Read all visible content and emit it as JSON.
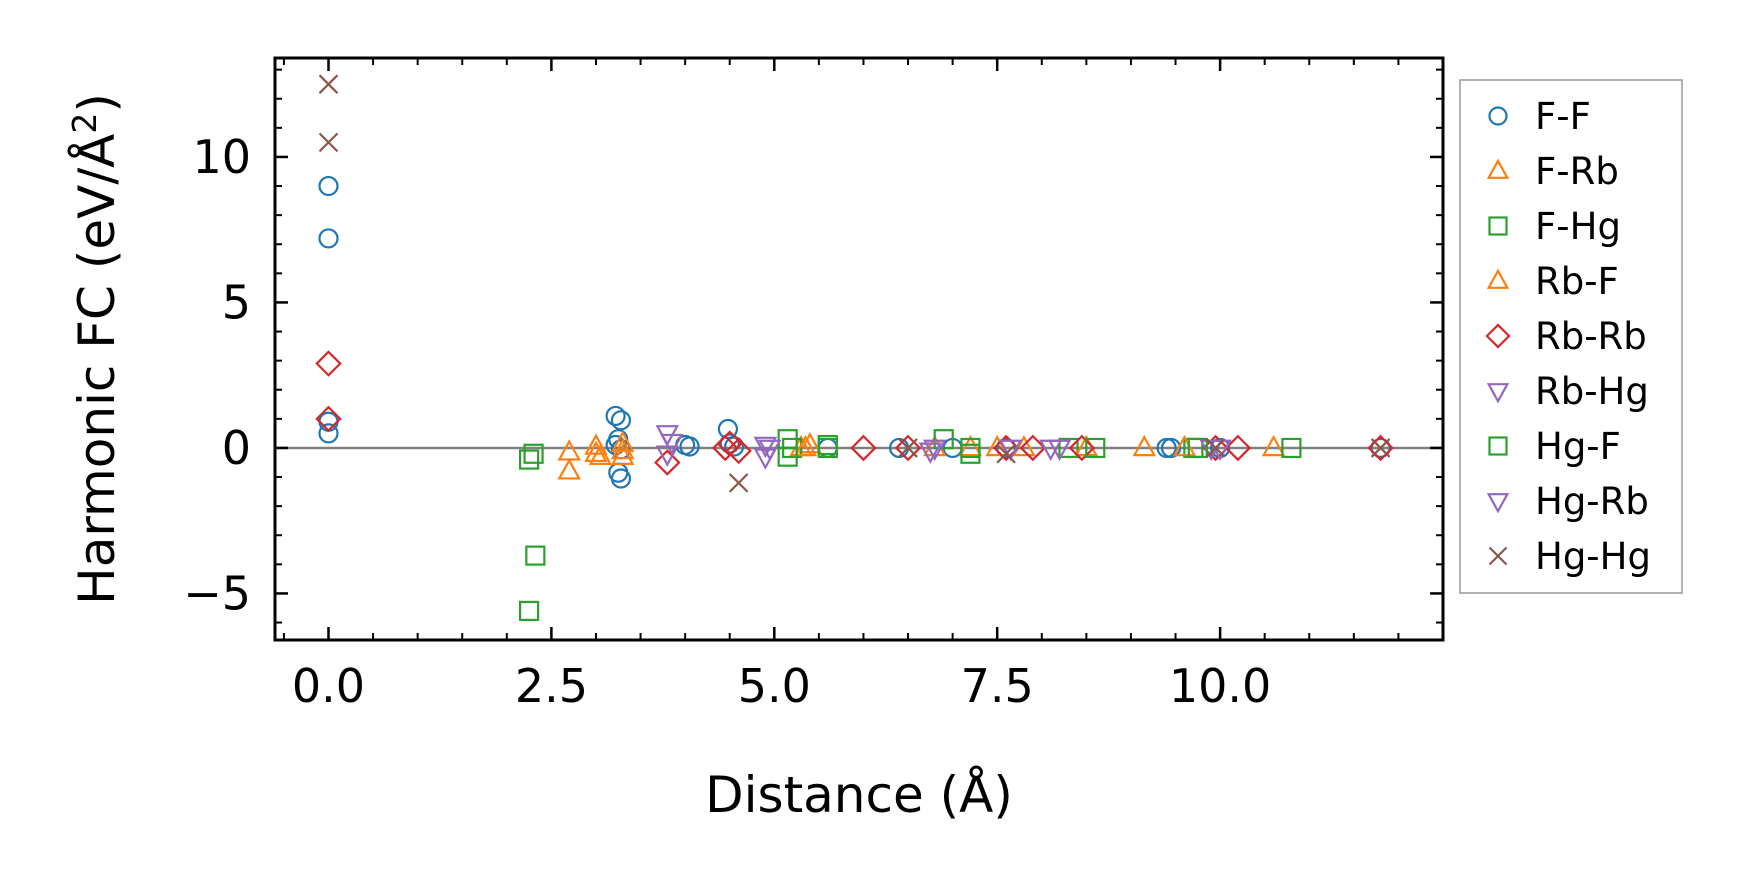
{
  "chart_data": {
    "type": "scatter",
    "xlabel": "Distance (Å)",
    "ylabel_parts": {
      "main": "Harmonic FC (eV/Å",
      "sup": "2",
      "close": ")"
    },
    "xlim": [
      -0.6,
      12.5
    ],
    "ylim": [
      -6.6,
      13.4
    ],
    "x_ticks": [
      0.0,
      2.5,
      5.0,
      7.5,
      10.0
    ],
    "x_tick_labels": [
      "0.0",
      "2.5",
      "5.0",
      "7.5",
      "10.0"
    ],
    "y_ticks": [
      -5,
      0,
      5,
      10
    ],
    "y_tick_labels": [
      "−5",
      "0",
      "5",
      "10"
    ],
    "zero_line": true,
    "grid": false,
    "legend_position": "outside-right",
    "series": [
      {
        "name": "F-F",
        "marker": "circle",
        "color": "#1f77b4",
        "points": [
          [
            0,
            9.0
          ],
          [
            0,
            7.2
          ],
          [
            0,
            0.9
          ],
          [
            0,
            0.5
          ],
          [
            3.22,
            1.1
          ],
          [
            3.28,
            0.95
          ],
          [
            3.25,
            0.3
          ],
          [
            3.22,
            0.1
          ],
          [
            3.28,
            -0.05
          ],
          [
            3.25,
            -0.85
          ],
          [
            3.28,
            -1.05
          ],
          [
            4.0,
            0.1
          ],
          [
            4.05,
            0.05
          ],
          [
            4.48,
            0.65
          ],
          [
            4.5,
            0.15
          ],
          [
            4.55,
            0.05
          ],
          [
            5.6,
            0.0
          ],
          [
            6.4,
            0.0
          ],
          [
            7.0,
            0.0
          ],
          [
            7.6,
            0.0
          ],
          [
            9.4,
            0.0
          ],
          [
            9.45,
            0.0
          ],
          [
            10.0,
            0.0
          ],
          [
            11.8,
            0.0
          ]
        ]
      },
      {
        "name": "F-Rb",
        "marker": "triangle-up",
        "color": "#ff7f0e",
        "points": [
          [
            2.7,
            -0.15
          ],
          [
            2.7,
            -0.8
          ],
          [
            3.0,
            0.05
          ],
          [
            3.05,
            -0.3
          ],
          [
            3.3,
            0.15
          ],
          [
            3.3,
            -0.3
          ],
          [
            5.3,
            0.0
          ],
          [
            5.4,
            0.1
          ],
          [
            6.8,
            0.0
          ],
          [
            7.2,
            0.0
          ],
          [
            7.8,
            0.0
          ],
          [
            9.15,
            0.0
          ],
          [
            10.6,
            0.0
          ]
        ]
      },
      {
        "name": "F-Hg",
        "marker": "square",
        "color": "#2ca02c",
        "points": [
          [
            2.25,
            -0.4
          ],
          [
            2.3,
            -0.2
          ],
          [
            2.32,
            -3.7
          ],
          [
            2.25,
            -5.6
          ],
          [
            5.15,
            0.3
          ],
          [
            5.2,
            0.0
          ],
          [
            5.6,
            0.0
          ],
          [
            6.9,
            0.3
          ],
          [
            7.2,
            0.0
          ],
          [
            8.3,
            0.0
          ],
          [
            9.7,
            0.0
          ],
          [
            10.8,
            0.0
          ]
        ]
      },
      {
        "name": "Rb-F",
        "marker": "triangle-up",
        "color": "#ff7f0e",
        "points": [
          [
            3.0,
            -0.2
          ],
          [
            3.3,
            -0.1
          ],
          [
            5.35,
            0.0
          ],
          [
            7.5,
            0.0
          ],
          [
            8.5,
            0.0
          ],
          [
            9.6,
            0.0
          ]
        ]
      },
      {
        "name": "Rb-Rb",
        "marker": "diamond",
        "color": "#d62728",
        "points": [
          [
            0,
            2.9
          ],
          [
            0,
            1.0
          ],
          [
            3.8,
            -0.5
          ],
          [
            4.45,
            0.0
          ],
          [
            4.5,
            0.15
          ],
          [
            4.6,
            -0.1
          ],
          [
            6.0,
            0.0
          ],
          [
            6.5,
            0.0
          ],
          [
            7.6,
            0.0
          ],
          [
            7.9,
            0.0
          ],
          [
            8.45,
            0.0
          ],
          [
            9.95,
            0.0
          ],
          [
            10.2,
            0.0
          ],
          [
            11.8,
            0.0
          ]
        ]
      },
      {
        "name": "Rb-Hg",
        "marker": "triangle-down",
        "color": "#9467bd",
        "points": [
          [
            3.8,
            0.5
          ],
          [
            3.85,
            0.2
          ],
          [
            3.8,
            -0.2
          ],
          [
            4.9,
            -0.3
          ],
          [
            4.9,
            0.1
          ],
          [
            6.8,
            0.0
          ],
          [
            8.1,
            0.0
          ],
          [
            9.9,
            0.0
          ]
        ]
      },
      {
        "name": "Hg-F",
        "marker": "square",
        "color": "#2ca02c",
        "points": [
          [
            5.15,
            -0.3
          ],
          [
            5.6,
            0.1
          ],
          [
            7.2,
            -0.2
          ],
          [
            8.6,
            0.0
          ],
          [
            9.75,
            0.0
          ]
        ]
      },
      {
        "name": "Hg-Rb",
        "marker": "triangle-down",
        "color": "#9467bd",
        "points": [
          [
            4.95,
            0.0
          ],
          [
            6.75,
            -0.1
          ],
          [
            7.65,
            0.0
          ],
          [
            8.2,
            0.0
          ],
          [
            10.0,
            0.0
          ]
        ]
      },
      {
        "name": "Hg-Hg",
        "marker": "x",
        "color": "#8c564b",
        "points": [
          [
            0,
            12.5
          ],
          [
            0,
            10.5
          ],
          [
            4.6,
            -1.2
          ],
          [
            6.5,
            0.0
          ],
          [
            7.6,
            -0.2
          ],
          [
            9.95,
            0.0
          ],
          [
            11.8,
            0.0
          ]
        ]
      }
    ]
  }
}
